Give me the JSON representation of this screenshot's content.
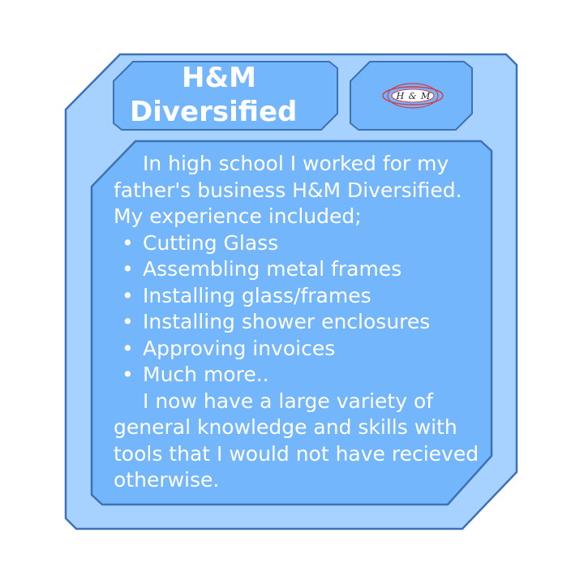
{
  "title": {
    "line1": "H&M",
    "line2": "Diversified"
  },
  "logo": {
    "text": "H & M",
    "icon": "company-logo-icon"
  },
  "body": {
    "intro": "In high school I worked for my father's business H&M Diversified. My experience included;",
    "bullets": [
      "Cutting Glass",
      "Assembling metal frames",
      "Installing glass/frames",
      "Installing shower enclosures",
      "Approving invoices",
      "Much more.."
    ],
    "conclusion": "I now have a large variety of general knowledge and skills with tools that I would not have recieved otherwise."
  },
  "colors": {
    "outer_fill": "#a7d1ff",
    "inner_fill": "#73b6fb",
    "stroke": "#3e72b7",
    "logo_ring": "#d43a4a"
  }
}
